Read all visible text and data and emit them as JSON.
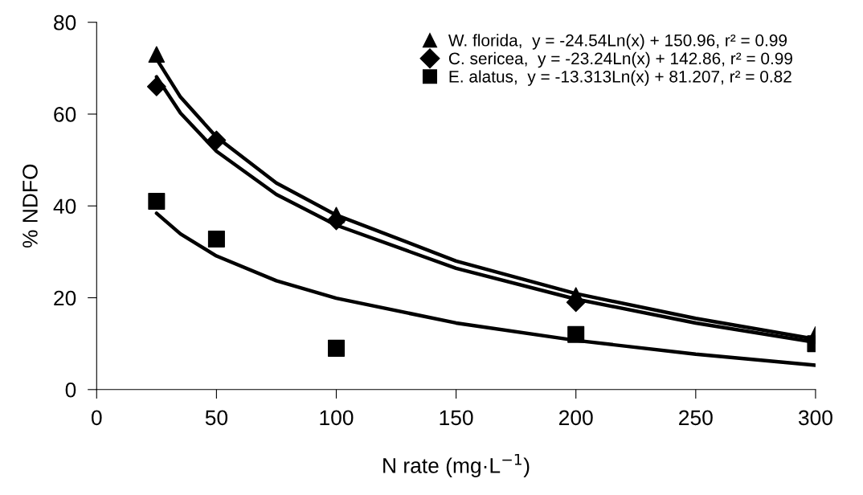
{
  "chart_data": {
    "type": "scatter",
    "xlabel": "N rate (mg·L$^{−1}$)",
    "ylabel": "% NDFO",
    "xlim": [
      0,
      300
    ],
    "xticks": [
      0,
      50,
      100,
      150,
      200,
      250,
      300
    ],
    "ylim": [
      0,
      80
    ],
    "yticks": [
      0,
      20,
      40,
      60,
      80
    ],
    "grid": false,
    "legend": "top right",
    "series": [
      {
        "name": "W. florida,  y = -24.54Ln(x) + 150.96, r² = 0.99",
        "marker": "triangle",
        "color": "#000000",
        "x": [
          25,
          50,
          100,
          200,
          300
        ],
        "values": [
          73,
          null,
          38,
          20.5,
          12
        ]
      },
      {
        "name": "C. sericea,  y = -23.24Ln(x) + 142.86, r² = 0.99",
        "marker": "diamond",
        "color": "#000000",
        "x": [
          25,
          50,
          100,
          200
        ],
        "values": [
          66,
          54.3,
          36.8,
          19
        ]
      },
      {
        "name": "E. alatus,  y = -13.313Ln(x) + 81.207, r² = 0.82",
        "marker": "square",
        "color": "#000000",
        "x": [
          25,
          50,
          100,
          200,
          300
        ],
        "values": [
          41,
          32.8,
          9,
          12,
          10
        ]
      },
      {
        "type": "line",
        "marker": "none",
        "line_style": "solid",
        "color": "#000000",
        "x": [
          25,
          35,
          50,
          75,
          100,
          150,
          200,
          250,
          300
        ],
        "values": [
          72.0,
          63.7,
          55.0,
          45.0,
          38.0,
          28.0,
          20.9,
          15.5,
          11.0
        ]
      },
      {
        "type": "line",
        "marker": "none",
        "line_style": "solid",
        "color": "#000000",
        "x": [
          25,
          35,
          50,
          75,
          100,
          150,
          200,
          250,
          300
        ],
        "values": [
          68.1,
          60.2,
          51.9,
          42.5,
          35.8,
          26.4,
          19.7,
          14.5,
          10.3
        ]
      },
      {
        "type": "line",
        "marker": "none",
        "line_style": "solid",
        "color": "#000000",
        "x": [
          25,
          35,
          50,
          75,
          100,
          150,
          200,
          250,
          300
        ],
        "values": [
          38.4,
          33.9,
          29.1,
          23.7,
          19.9,
          14.5,
          10.7,
          7.7,
          5.3
        ]
      }
    ]
  }
}
